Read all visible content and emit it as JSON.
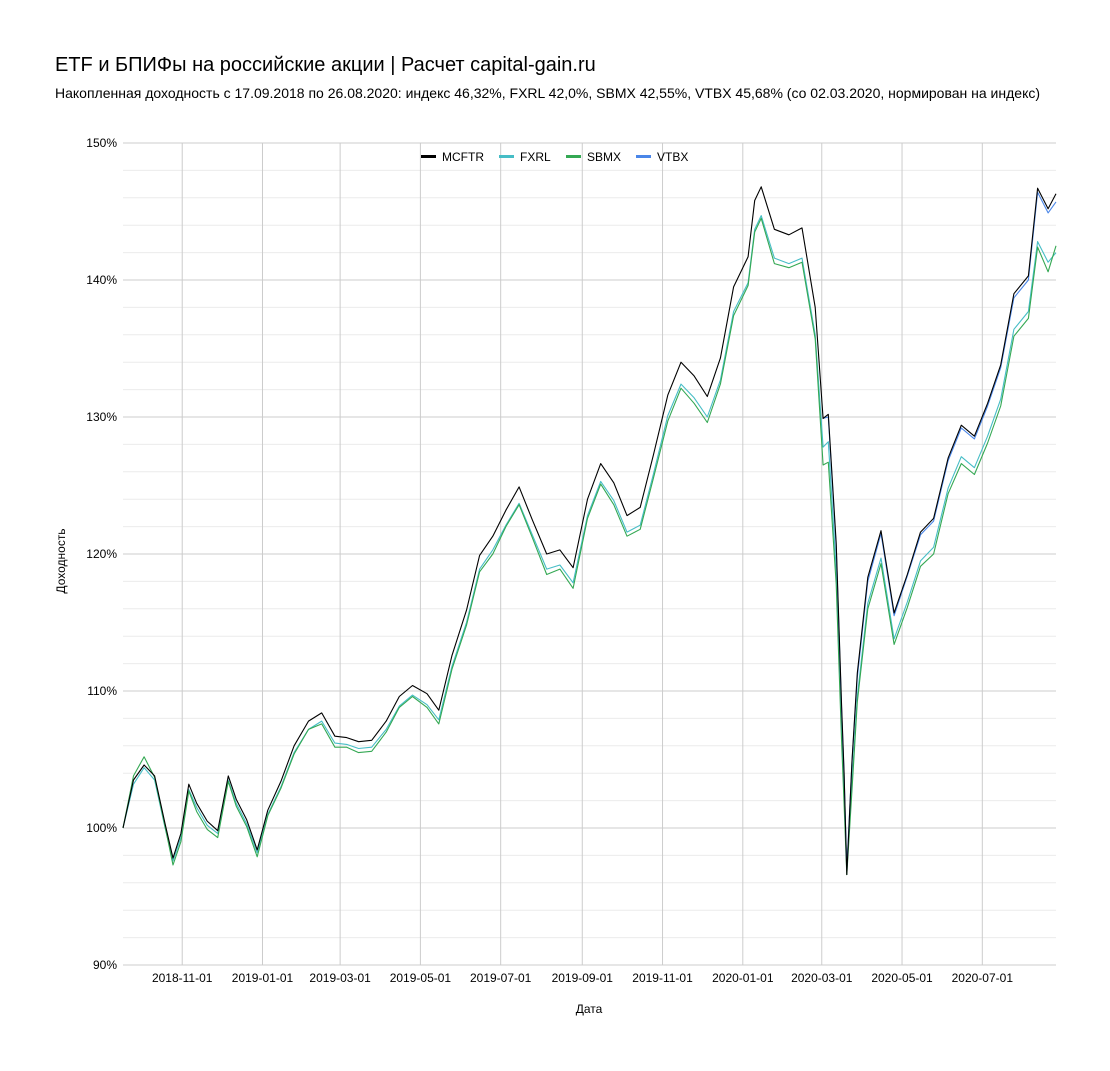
{
  "chart_data": {
    "type": "line",
    "title": "ETF и БПИФы на российские акции | Расчет capital-gain.ru",
    "subtitle": "Накопленная доходность с 17.09.2018 по 26.08.2020: индекс 46,32%, FXRL 42,0%, SBMX 42,55%, VTBX 45,68% (со 02.03.2020, нормирован на индекс)",
    "xlabel": "Дата",
    "ylabel": "Доходность",
    "x_range": [
      "2018-09-17",
      "2020-08-26"
    ],
    "ylim": [
      90,
      150
    ],
    "y_ticks": [
      {
        "value": 90,
        "label": "90%"
      },
      {
        "value": 100,
        "label": "100%"
      },
      {
        "value": 110,
        "label": "110%"
      },
      {
        "value": 120,
        "label": "120%"
      },
      {
        "value": 130,
        "label": "130%"
      },
      {
        "value": 140,
        "label": "140%"
      },
      {
        "value": 150,
        "label": "150%"
      }
    ],
    "x_ticks": [
      "2018-11-01",
      "2019-01-01",
      "2019-03-01",
      "2019-05-01",
      "2019-07-01",
      "2019-09-01",
      "2019-11-01",
      "2020-01-01",
      "2020-03-01",
      "2020-05-01",
      "2020-07-01"
    ],
    "grid": true,
    "legend_position": "top",
    "series": [
      {
        "name": "MCFTR",
        "color": "#000000",
        "x": [
          "2018-09-17",
          "2018-09-25",
          "2018-10-03",
          "2018-10-11",
          "2018-10-19",
          "2018-10-25",
          "2018-10-31",
          "2018-11-06",
          "2018-11-12",
          "2018-11-20",
          "2018-11-28",
          "2018-12-06",
          "2018-12-12",
          "2018-12-20",
          "2018-12-28",
          "2019-01-05",
          "2019-01-15",
          "2019-01-25",
          "2019-02-05",
          "2019-02-15",
          "2019-02-25",
          "2019-03-06",
          "2019-03-15",
          "2019-03-25",
          "2019-04-05",
          "2019-04-15",
          "2019-04-25",
          "2019-05-06",
          "2019-05-15",
          "2019-05-25",
          "2019-06-05",
          "2019-06-15",
          "2019-06-25",
          "2019-07-05",
          "2019-07-15",
          "2019-07-25",
          "2019-08-05",
          "2019-08-15",
          "2019-08-25",
          "2019-09-05",
          "2019-09-15",
          "2019-09-25",
          "2019-10-05",
          "2019-10-15",
          "2019-10-25",
          "2019-11-05",
          "2019-11-15",
          "2019-11-25",
          "2019-12-05",
          "2019-12-15",
          "2019-12-25",
          "2020-01-05",
          "2020-01-10",
          "2020-01-15",
          "2020-01-25",
          "2020-02-05",
          "2020-02-15",
          "2020-02-25",
          "2020-03-02",
          "2020-03-06",
          "2020-03-12",
          "2020-03-16",
          "2020-03-18",
          "2020-03-20",
          "2020-03-24",
          "2020-03-28",
          "2020-04-05",
          "2020-04-15",
          "2020-04-25",
          "2020-05-05",
          "2020-05-15",
          "2020-05-25",
          "2020-06-05",
          "2020-06-15",
          "2020-06-25",
          "2020-07-05",
          "2020-07-15",
          "2020-07-25",
          "2020-08-05",
          "2020-08-12",
          "2020-08-20",
          "2020-08-26"
        ],
        "values": [
          100,
          103.5,
          104.6,
          103.8,
          100.3,
          97.8,
          99.6,
          103.2,
          101.8,
          100.5,
          99.8,
          103.8,
          102.1,
          100.6,
          98.4,
          101.3,
          103.4,
          106.0,
          107.8,
          108.4,
          106.7,
          106.6,
          106.3,
          106.4,
          107.8,
          109.6,
          110.4,
          109.8,
          108.6,
          112.6,
          115.9,
          119.9,
          121.3,
          123.2,
          124.9,
          122.5,
          120.0,
          120.3,
          119.0,
          124.0,
          126.6,
          125.2,
          122.8,
          123.4,
          127.2,
          131.6,
          134.0,
          133.0,
          131.5,
          134.3,
          139.5,
          141.7,
          145.8,
          146.8,
          143.7,
          143.3,
          143.8,
          138.0,
          129.9,
          130.2,
          120.8,
          109.1,
          104.0,
          96.6,
          104.9,
          111.3,
          118.3,
          121.7,
          115.7,
          118.5,
          121.6,
          122.6,
          127.0,
          129.4,
          128.6,
          131.0,
          133.8,
          139.0,
          140.3,
          146.7,
          145.2,
          146.3
        ]
      },
      {
        "name": "FXRL",
        "color": "#46bdc6",
        "x": [
          "2018-09-17",
          "2018-09-25",
          "2018-10-03",
          "2018-10-11",
          "2018-10-19",
          "2018-10-25",
          "2018-10-31",
          "2018-11-06",
          "2018-11-12",
          "2018-11-20",
          "2018-11-28",
          "2018-12-06",
          "2018-12-12",
          "2018-12-20",
          "2018-12-28",
          "2019-01-05",
          "2019-01-15",
          "2019-01-25",
          "2019-02-05",
          "2019-02-15",
          "2019-02-25",
          "2019-03-06",
          "2019-03-15",
          "2019-03-25",
          "2019-04-05",
          "2019-04-15",
          "2019-04-25",
          "2019-05-06",
          "2019-05-15",
          "2019-05-25",
          "2019-06-05",
          "2019-06-15",
          "2019-06-25",
          "2019-07-05",
          "2019-07-15",
          "2019-07-25",
          "2019-08-05",
          "2019-08-15",
          "2019-08-25",
          "2019-09-05",
          "2019-09-15",
          "2019-09-25",
          "2019-10-05",
          "2019-10-15",
          "2019-10-25",
          "2019-11-05",
          "2019-11-15",
          "2019-11-25",
          "2019-12-05",
          "2019-12-15",
          "2019-12-25",
          "2020-01-05",
          "2020-01-10",
          "2020-01-15",
          "2020-01-25",
          "2020-02-05",
          "2020-02-15",
          "2020-02-25",
          "2020-03-02",
          "2020-03-06",
          "2020-03-12",
          "2020-03-16",
          "2020-03-18",
          "2020-03-20",
          "2020-03-24",
          "2020-03-28",
          "2020-04-05",
          "2020-04-15",
          "2020-04-25",
          "2020-05-05",
          "2020-05-15",
          "2020-05-25",
          "2020-06-05",
          "2020-06-15",
          "2020-06-25",
          "2020-07-05",
          "2020-07-15",
          "2020-07-25",
          "2020-08-05",
          "2020-08-12",
          "2020-08-20",
          "2020-08-26"
        ],
        "values": [
          100,
          103.2,
          104.4,
          103.5,
          100.0,
          97.6,
          99.3,
          102.8,
          101.5,
          100.2,
          99.6,
          103.5,
          101.8,
          100.3,
          98.2,
          101.0,
          103.0,
          105.5,
          107.2,
          107.8,
          106.2,
          106.1,
          105.8,
          105.9,
          107.2,
          108.9,
          109.7,
          109.0,
          107.9,
          111.8,
          115.0,
          118.9,
          120.3,
          122.1,
          123.7,
          121.4,
          118.9,
          119.2,
          117.9,
          122.8,
          125.3,
          123.9,
          121.6,
          122.1,
          125.8,
          130.1,
          132.4,
          131.4,
          130.0,
          132.7,
          137.7,
          139.8,
          143.7,
          144.7,
          141.6,
          141.2,
          141.6,
          136.0,
          127.8,
          128.2,
          118.9,
          107.4,
          102.4,
          97.2,
          103.3,
          109.6,
          116.4,
          119.7,
          113.8,
          116.5,
          119.5,
          120.5,
          124.8,
          127.1,
          126.3,
          128.6,
          131.3,
          136.4,
          137.7,
          142.8,
          141.3,
          142.0
        ]
      },
      {
        "name": "SBMX",
        "color": "#34a853",
        "x": [
          "2018-09-17",
          "2018-09-25",
          "2018-10-03",
          "2018-10-11",
          "2018-10-19",
          "2018-10-25",
          "2018-10-31",
          "2018-11-06",
          "2018-11-12",
          "2018-11-20",
          "2018-11-28",
          "2018-12-06",
          "2018-12-12",
          "2018-12-20",
          "2018-12-28",
          "2019-01-05",
          "2019-01-15",
          "2019-01-25",
          "2019-02-05",
          "2019-02-15",
          "2019-02-25",
          "2019-03-06",
          "2019-03-15",
          "2019-03-25",
          "2019-04-05",
          "2019-04-15",
          "2019-04-25",
          "2019-05-06",
          "2019-05-15",
          "2019-05-25",
          "2019-06-05",
          "2019-06-15",
          "2019-06-25",
          "2019-07-05",
          "2019-07-15",
          "2019-07-25",
          "2019-08-05",
          "2019-08-15",
          "2019-08-25",
          "2019-09-05",
          "2019-09-15",
          "2019-09-25",
          "2019-10-05",
          "2019-10-15",
          "2019-10-25",
          "2019-11-05",
          "2019-11-15",
          "2019-11-25",
          "2019-12-05",
          "2019-12-15",
          "2019-12-25",
          "2020-01-05",
          "2020-01-10",
          "2020-01-15",
          "2020-01-25",
          "2020-02-05",
          "2020-02-15",
          "2020-02-25",
          "2020-03-02",
          "2020-03-06",
          "2020-03-12",
          "2020-03-16",
          "2020-03-18",
          "2020-03-20",
          "2020-03-24",
          "2020-03-28",
          "2020-04-05",
          "2020-04-15",
          "2020-04-25",
          "2020-05-05",
          "2020-05-15",
          "2020-05-25",
          "2020-06-05",
          "2020-06-15",
          "2020-06-25",
          "2020-07-05",
          "2020-07-15",
          "2020-07-25",
          "2020-08-05",
          "2020-08-12",
          "2020-08-20",
          "2020-08-26"
        ],
        "values": [
          100,
          103.8,
          105.2,
          103.7,
          100.1,
          97.3,
          99.0,
          102.7,
          101.2,
          99.9,
          99.3,
          103.4,
          101.6,
          100.1,
          97.9,
          100.9,
          102.9,
          105.4,
          107.2,
          107.6,
          105.9,
          105.9,
          105.5,
          105.6,
          107.0,
          108.8,
          109.6,
          108.8,
          107.6,
          111.6,
          114.8,
          118.7,
          120.0,
          122.0,
          123.6,
          121.2,
          118.5,
          118.9,
          117.5,
          122.6,
          125.1,
          123.6,
          121.3,
          121.8,
          125.5,
          129.7,
          132.1,
          131.0,
          129.6,
          132.4,
          137.4,
          139.6,
          143.5,
          144.5,
          141.2,
          140.9,
          141.3,
          135.7,
          126.5,
          126.7,
          117.8,
          106.5,
          101.7,
          96.6,
          102.8,
          109.2,
          116.0,
          119.3,
          113.4,
          116.1,
          119.1,
          120.0,
          124.4,
          126.6,
          125.8,
          128.1,
          130.8,
          135.9,
          137.2,
          142.4,
          140.6,
          142.5
        ]
      },
      {
        "name": "VTBX",
        "color": "#4a86e8",
        "x": [
          "2020-03-02",
          "2020-03-06",
          "2020-03-12",
          "2020-03-16",
          "2020-03-18",
          "2020-03-20",
          "2020-03-24",
          "2020-03-28",
          "2020-04-05",
          "2020-04-15",
          "2020-04-25",
          "2020-05-05",
          "2020-05-15",
          "2020-05-25",
          "2020-06-05",
          "2020-06-15",
          "2020-06-25",
          "2020-07-05",
          "2020-07-15",
          "2020-07-25",
          "2020-08-05",
          "2020-08-12",
          "2020-08-20",
          "2020-08-26"
        ],
        "values": [
          129.9,
          130.0,
          120.5,
          108.8,
          103.8,
          97.0,
          104.8,
          111.0,
          118.0,
          121.5,
          115.5,
          118.4,
          121.4,
          122.4,
          126.8,
          129.2,
          128.4,
          130.8,
          133.6,
          138.7,
          140.0,
          146.4,
          144.9,
          145.7
        ]
      }
    ]
  }
}
